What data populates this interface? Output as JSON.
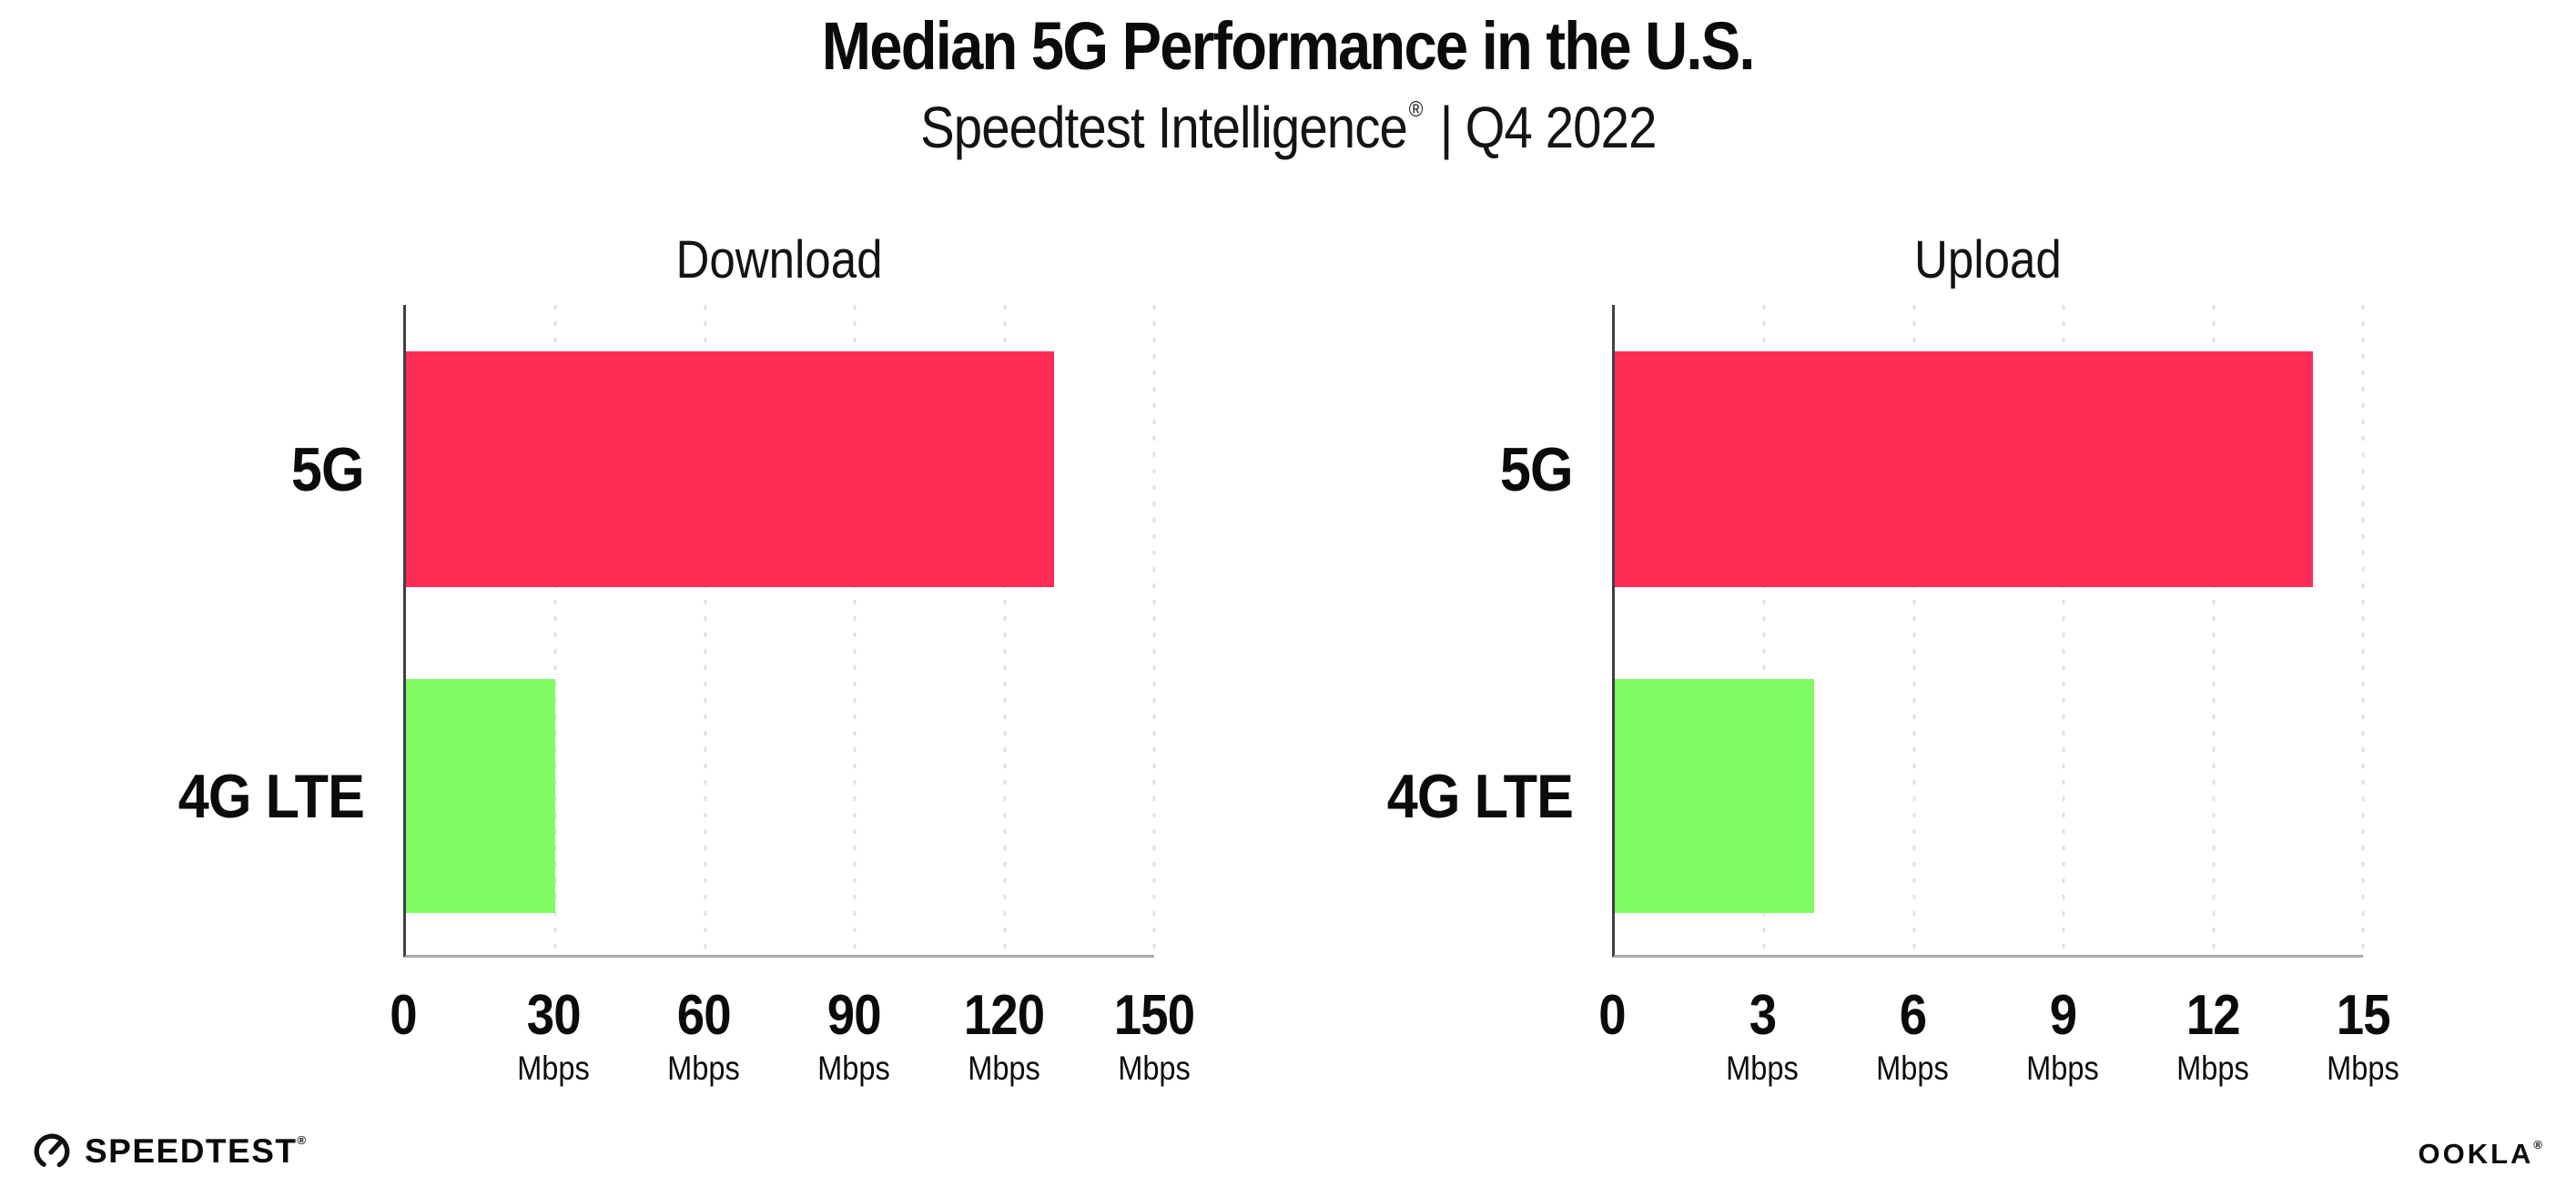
{
  "header": {
    "title": "Median 5G Performance in the U.S.",
    "subtitle": {
      "brand": "Speedtest Intelligence",
      "reg_mark": "®",
      "separator": "|",
      "period": "Q4 2022"
    }
  },
  "colors": {
    "bar_5g": "#FF2D55",
    "bar_4g_lte": "#80FB61",
    "gridline": "#E0E0E8",
    "y_axis_line": "#3F3F46",
    "x_axis_line": "#A9A9AF",
    "text": "#0B0B0D"
  },
  "chart_data": [
    {
      "type": "bar",
      "orientation": "horizontal",
      "title": "Download",
      "categories": [
        "5G",
        "4G LTE"
      ],
      "values": [
        130,
        30
      ],
      "unit": "Mbps",
      "xlim": [
        0,
        150
      ],
      "xticks": [
        0,
        30,
        60,
        90,
        120,
        150
      ],
      "bar_colors": [
        "#FF2D55",
        "#80FB61"
      ],
      "grid": "vertical dotted",
      "legend": "none"
    },
    {
      "type": "bar",
      "orientation": "horizontal",
      "title": "Upload",
      "categories": [
        "5G",
        "4G LTE"
      ],
      "values": [
        14,
        4
      ],
      "unit": "Mbps",
      "xlim": [
        0,
        15
      ],
      "xticks": [
        0,
        3,
        6,
        9,
        12,
        15
      ],
      "bar_colors": [
        "#FF2D55",
        "#80FB61"
      ],
      "grid": "vertical dotted",
      "legend": "none"
    }
  ],
  "footer": {
    "speedtest_wordmark": "SPEEDTEST",
    "speedtest_reg": "®",
    "ookla_wordmark": "OOKLA",
    "ookla_reg": "®"
  }
}
